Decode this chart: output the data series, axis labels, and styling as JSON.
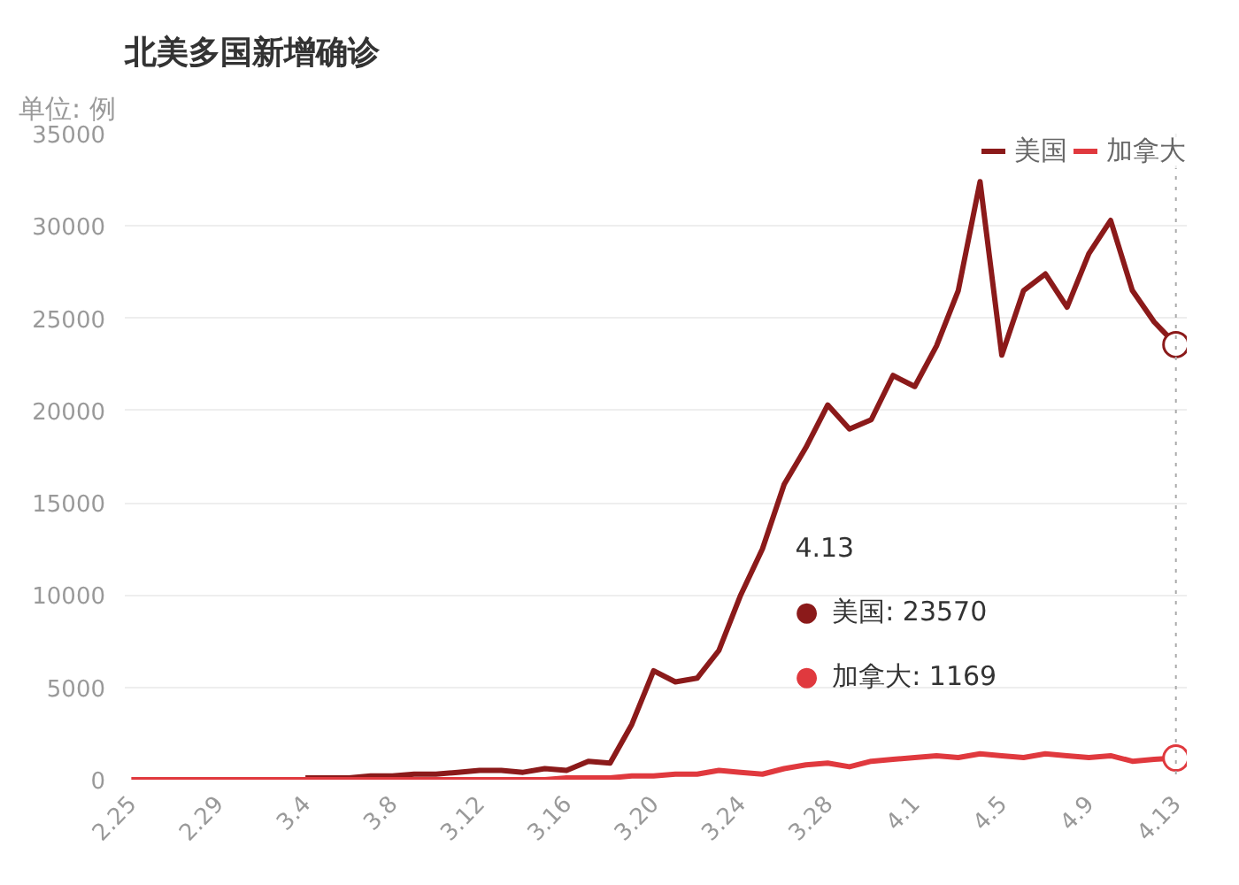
{
  "chart_data": {
    "type": "line",
    "title": "北美多国新增确诊",
    "ylabel": "单位: 例",
    "categories": [
      "2.25",
      null,
      null,
      null,
      "2.29",
      null,
      null,
      null,
      "3.4",
      null,
      null,
      null,
      "3.8",
      null,
      null,
      null,
      "3.12",
      null,
      null,
      null,
      "3.16",
      null,
      null,
      null,
      "3.20",
      null,
      null,
      null,
      "3.24",
      null,
      null,
      null,
      "3.28",
      null,
      null,
      null,
      "4.1",
      null,
      null,
      null,
      "4.5",
      null,
      null,
      null,
      "4.9",
      null,
      null,
      null,
      "4.13"
    ],
    "series": [
      {
        "name": "美国",
        "color": "#8b1a1a",
        "values": [
          null,
          null,
          null,
          null,
          null,
          null,
          null,
          null,
          100,
          100,
          100,
          200,
          200,
          300,
          300,
          400,
          500,
          500,
          400,
          600,
          500,
          1000,
          900,
          3000,
          5900,
          5300,
          5500,
          7000,
          10000,
          12500,
          16000,
          18000,
          20300,
          19000,
          19500,
          21900,
          21300,
          23500,
          26500,
          32400,
          23000,
          26500,
          27400,
          25600,
          28500,
          30300,
          26500,
          24800,
          23570
        ]
      },
      {
        "name": "加拿大",
        "color": "#e0393e",
        "values": [
          0,
          0,
          0,
          0,
          0,
          0,
          0,
          0,
          0,
          0,
          0,
          0,
          0,
          0,
          0,
          0,
          0,
          0,
          0,
          0,
          100,
          100,
          100,
          200,
          200,
          300,
          300,
          500,
          400,
          300,
          600,
          800,
          900,
          700,
          1000,
          1100,
          1200,
          1300,
          1200,
          1400,
          1300,
          1200,
          1400,
          1300,
          1200,
          1300,
          1000,
          1100,
          1169
        ]
      }
    ],
    "ylim": [
      0,
      35000
    ],
    "yticks": [
      0,
      5000,
      10000,
      15000,
      20000,
      25000,
      30000,
      35000
    ],
    "grid": "y",
    "legend": "top right",
    "line_style": "solid",
    "annotations": [
      "4.13",
      "● 美国: 23570",
      "● 加拿大: 1169"
    ]
  }
}
